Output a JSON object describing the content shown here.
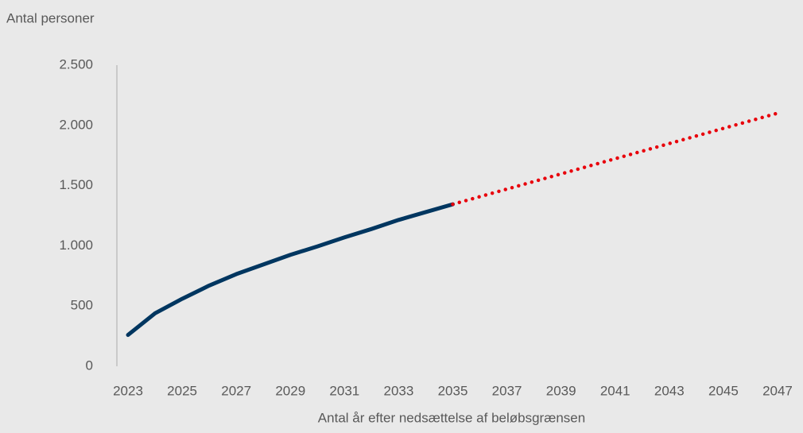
{
  "chart_data": {
    "type": "line",
    "y_label": "Antal personer",
    "x_label": "Antal år efter nedsættelse af beløbsgrænsen",
    "categories": [
      "2023",
      null,
      "2025",
      null,
      "2027",
      null,
      "2029",
      null,
      "2031",
      null,
      "2033",
      null,
      "2035",
      null,
      "2037",
      null,
      "2039",
      null,
      "2041",
      null,
      "2043",
      null,
      "2045",
      null,
      "2047"
    ],
    "series": [
      {
        "color": "#003660",
        "style": "solid",
        "values": [
          260,
          440,
          560,
          670,
          765,
          845,
          925,
          995,
          1070,
          1140,
          1215,
          1280,
          1345,
          null,
          null,
          null,
          null,
          null,
          null,
          null,
          null,
          null,
          null,
          null,
          null
        ]
      },
      {
        "color": "#e8000b",
        "style": "dotted",
        "values": [
          null,
          null,
          null,
          null,
          null,
          null,
          null,
          null,
          null,
          null,
          null,
          null,
          1345,
          1408,
          1471,
          1534,
          1597,
          1660,
          1723,
          1786,
          1849,
          1912,
          1975,
          2038,
          2101
        ]
      }
    ],
    "ylim": [
      0,
      2500
    ],
    "yticks": [
      0,
      500,
      {
        "value": 1000,
        "label": "1.000"
      },
      {
        "value": 1500,
        "label": "1.500"
      },
      {
        "value": 2000,
        "label": "2.000"
      },
      {
        "value": 2500,
        "label": "2.500"
      }
    ],
    "grid": false
  }
}
